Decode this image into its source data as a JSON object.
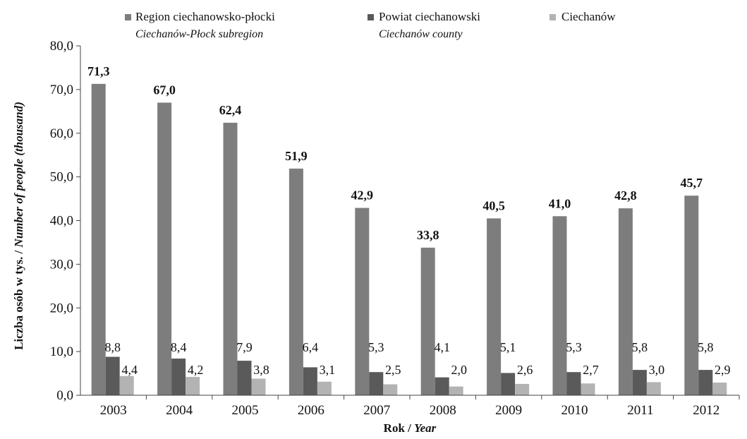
{
  "chart_data": {
    "type": "bar",
    "categories": [
      "2003",
      "2004",
      "2005",
      "2006",
      "2007",
      "2008",
      "2009",
      "2010",
      "2011",
      "2012"
    ],
    "series": [
      {
        "name": "Region ciechanowsko-płocki",
        "name_en": "Ciechanów-Płock subregion",
        "color": "#7d7d7d",
        "values": [
          71.3,
          67.0,
          62.4,
          51.9,
          42.9,
          33.8,
          40.5,
          41.0,
          42.8,
          45.7
        ],
        "labels": [
          "71,3",
          "67,0",
          "62,4",
          "51,9",
          "42,9",
          "33,8",
          "40,5",
          "41,0",
          "42,8",
          "45,7"
        ]
      },
      {
        "name": "Powiat ciechanowski",
        "name_en": "Ciechanów county",
        "color": "#5a5a5a",
        "values": [
          8.8,
          8.4,
          7.9,
          6.4,
          5.3,
          4.1,
          5.1,
          5.3,
          5.8,
          5.8
        ],
        "labels": [
          "8,8",
          "8,4",
          "7,9",
          "6,4",
          "5,3",
          "4,1",
          "5,1",
          "5,3",
          "5,8",
          "5,8"
        ]
      },
      {
        "name": "Ciechanów",
        "color": "#b3b3b3",
        "values": [
          4.4,
          4.2,
          3.8,
          3.1,
          2.5,
          2.0,
          2.6,
          2.7,
          3.0,
          2.9
        ],
        "labels": [
          "4,4",
          "4,2",
          "3,8",
          "3,1",
          "2,5",
          "2,0",
          "2,6",
          "2,7",
          "3,0",
          "2,9"
        ]
      }
    ],
    "yticks": [
      "0,0",
      "10,0",
      "20,0",
      "30,0",
      "40,0",
      "50,0",
      "60,0",
      "70,0",
      "80,0"
    ],
    "ylim": [
      0,
      80
    ],
    "ylabel": "Liczba osób w tys. / Number of people (thousand)",
    "ylabel_pl": "Liczba osób w tys. / ",
    "ylabel_en": "Number of people (thousand)",
    "xlabel_pl": "Rok / ",
    "xlabel_en": "Year",
    "grid": false,
    "legend_position": "top"
  }
}
